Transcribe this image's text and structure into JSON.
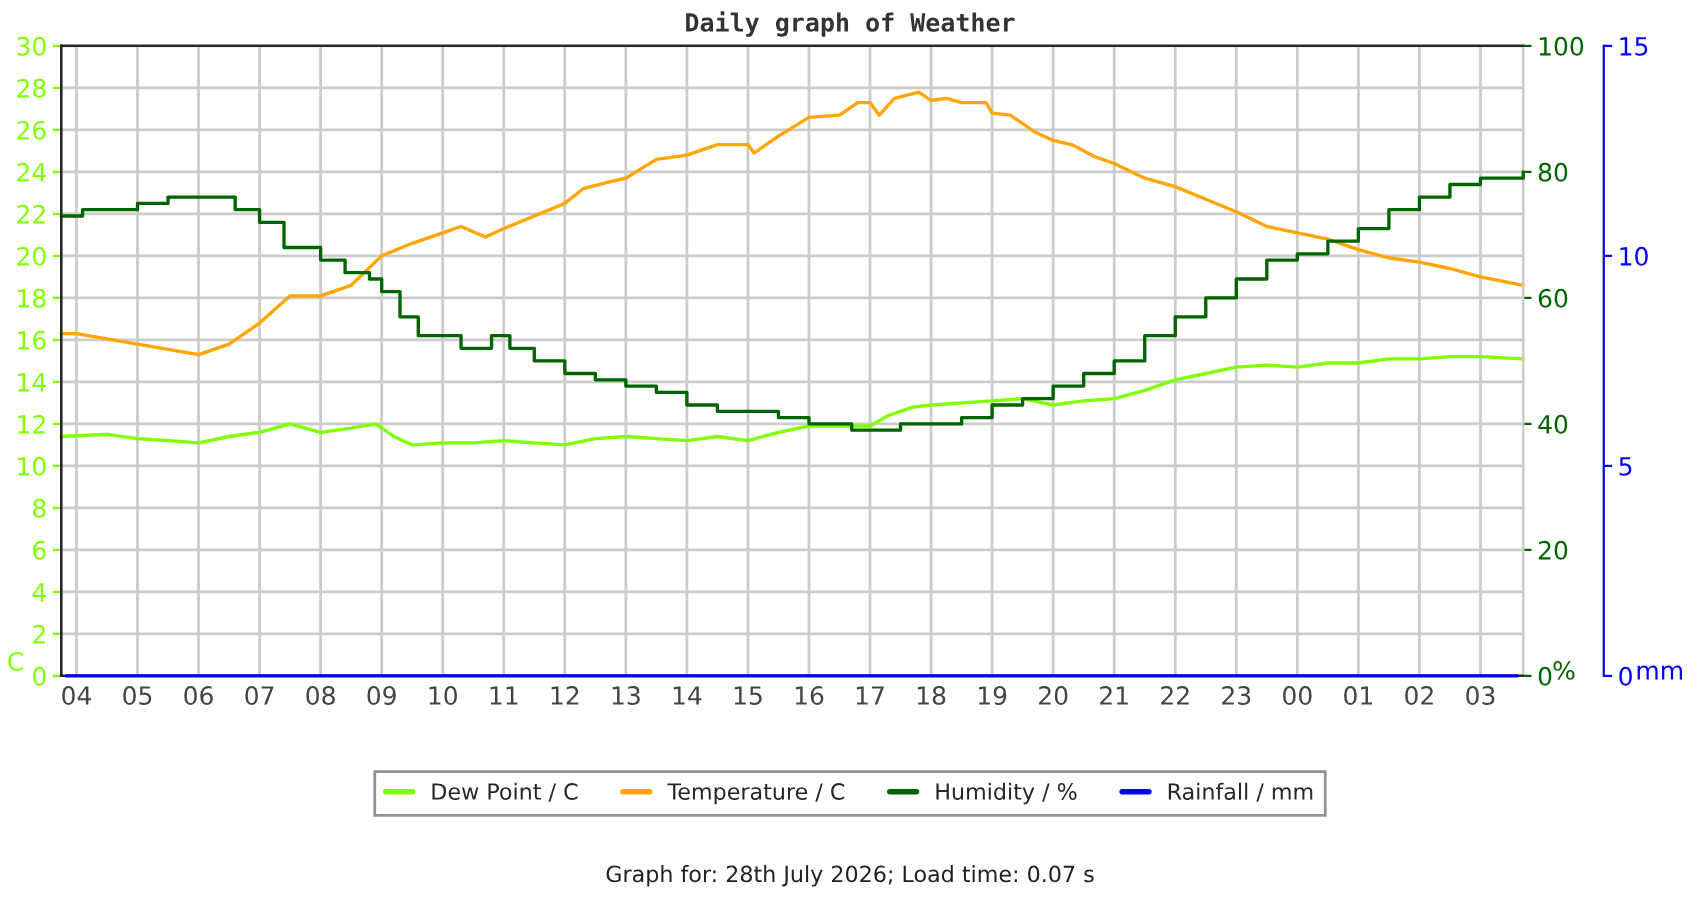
{
  "chart_data": {
    "type": "line",
    "title": "Daily graph of Weather",
    "ylabel": "C",
    "y2label": "%",
    "y3label": "mm",
    "annotations": [
      "Graph for: 28th July 2026; Load time: 0.07 s"
    ],
    "xlim": [
      "2026-07-27T03:45",
      "2026-07-28T03:42"
    ],
    "xticks": [
      {
        "value": "2026-07-27T04:00",
        "label": "04"
      },
      {
        "value": "2026-07-27T05:00",
        "label": "05"
      },
      {
        "value": "2026-07-27T06:00",
        "label": "06"
      },
      {
        "value": "2026-07-27T07:00",
        "label": "07"
      },
      {
        "value": "2026-07-27T08:00",
        "label": "08"
      },
      {
        "value": "2026-07-27T09:00",
        "label": "09"
      },
      {
        "value": "2026-07-27T10:00",
        "label": "10"
      },
      {
        "value": "2026-07-27T11:00",
        "label": "11"
      },
      {
        "value": "2026-07-27T12:00",
        "label": "12"
      },
      {
        "value": "2026-07-27T13:00",
        "label": "13"
      },
      {
        "value": "2026-07-27T14:00",
        "label": "14"
      },
      {
        "value": "2026-07-27T15:00",
        "label": "15"
      },
      {
        "value": "2026-07-27T16:00",
        "label": "16"
      },
      {
        "value": "2026-07-27T17:00",
        "label": "17"
      },
      {
        "value": "2026-07-27T18:00",
        "label": "18"
      },
      {
        "value": "2026-07-27T19:00",
        "label": "19"
      },
      {
        "value": "2026-07-27T20:00",
        "label": "20"
      },
      {
        "value": "2026-07-27T21:00",
        "label": "21"
      },
      {
        "value": "2026-07-27T22:00",
        "label": "22"
      },
      {
        "value": "2026-07-27T23:00",
        "label": "23"
      },
      {
        "value": "2026-07-28T00:00",
        "label": "00"
      },
      {
        "value": "2026-07-28T01:00",
        "label": "01"
      },
      {
        "value": "2026-07-28T02:00",
        "label": "02"
      },
      {
        "value": "2026-07-28T03:00",
        "label": "03"
      }
    ],
    "ylim": [
      0,
      30
    ],
    "yticks": [
      0,
      2,
      4,
      6,
      8,
      10,
      12,
      14,
      16,
      18,
      20,
      22,
      24,
      26,
      28,
      30
    ],
    "y2lim": [
      0,
      100
    ],
    "y2ticks": [
      0,
      20,
      40,
      60,
      80,
      100
    ],
    "y3lim": [
      0,
      15
    ],
    "y3ticks": [
      0,
      5,
      10,
      15
    ],
    "grid": true,
    "legend": "bottom",
    "series": [
      {
        "name": "Dew Point / C",
        "color": "#80ff00",
        "x": [
          "2026-07-27T03:45",
          "2026-07-27T04:30",
          "2026-07-27T05:00",
          "2026-07-27T05:30",
          "2026-07-27T06:00",
          "2026-07-27T06:30",
          "2026-07-27T07:00",
          "2026-07-27T07:30",
          "2026-07-27T08:00",
          "2026-07-27T08:30",
          "2026-07-27T08:54",
          "2026-07-27T09:12",
          "2026-07-27T09:30",
          "2026-07-27T10:00",
          "2026-07-27T10:30",
          "2026-07-27T11:00",
          "2026-07-27T11:30",
          "2026-07-27T12:00",
          "2026-07-27T12:30",
          "2026-07-27T13:00",
          "2026-07-27T13:30",
          "2026-07-27T14:00",
          "2026-07-27T14:30",
          "2026-07-27T15:00",
          "2026-07-27T15:30",
          "2026-07-27T16:00",
          "2026-07-27T16:42",
          "2026-07-27T17:00",
          "2026-07-27T17:18",
          "2026-07-27T17:42",
          "2026-07-27T18:00",
          "2026-07-27T18:30",
          "2026-07-27T19:00",
          "2026-07-27T19:30",
          "2026-07-27T20:00",
          "2026-07-27T20:30",
          "2026-07-27T21:00",
          "2026-07-27T21:30",
          "2026-07-27T22:00",
          "2026-07-27T22:30",
          "2026-07-27T23:00",
          "2026-07-27T23:30",
          "2026-07-28T00:00",
          "2026-07-28T00:30",
          "2026-07-28T01:00",
          "2026-07-28T01:30",
          "2026-07-28T02:00",
          "2026-07-28T02:30",
          "2026-07-28T03:00",
          "2026-07-28T03:42"
        ],
        "values": [
          11.4,
          11.5,
          11.3,
          11.2,
          11.1,
          11.4,
          11.6,
          12.0,
          11.6,
          11.8,
          12.0,
          11.4,
          11.0,
          11.1,
          11.1,
          11.2,
          11.1,
          11.0,
          11.3,
          11.4,
          11.3,
          11.2,
          11.4,
          11.2,
          11.6,
          11.9,
          11.9,
          11.9,
          12.4,
          12.8,
          12.9,
          13.0,
          13.1,
          13.2,
          12.9,
          13.1,
          13.2,
          13.6,
          14.1,
          14.4,
          14.7,
          14.8,
          14.7,
          14.9,
          14.9,
          15.1,
          15.1,
          15.2,
          15.2,
          15.1
        ]
      },
      {
        "name": "Temperature / C",
        "color": "#ffa500",
        "x": [
          "2026-07-27T03:45",
          "2026-07-27T04:00",
          "2026-07-27T05:00",
          "2026-07-27T06:00",
          "2026-07-27T06:30",
          "2026-07-27T07:00",
          "2026-07-27T07:30",
          "2026-07-27T08:00",
          "2026-07-27T08:30",
          "2026-07-27T09:00",
          "2026-07-27T09:30",
          "2026-07-27T10:00",
          "2026-07-27T10:18",
          "2026-07-27T10:42",
          "2026-07-27T11:00",
          "2026-07-27T11:30",
          "2026-07-27T12:00",
          "2026-07-27T12:18",
          "2026-07-27T12:42",
          "2026-07-27T13:00",
          "2026-07-27T13:30",
          "2026-07-27T14:00",
          "2026-07-27T14:30",
          "2026-07-27T15:00",
          "2026-07-27T15:06",
          "2026-07-27T15:30",
          "2026-07-27T16:00",
          "2026-07-27T16:30",
          "2026-07-27T16:48",
          "2026-07-27T17:00",
          "2026-07-27T17:09",
          "2026-07-27T17:24",
          "2026-07-27T17:48",
          "2026-07-27T18:00",
          "2026-07-27T18:15",
          "2026-07-27T18:30",
          "2026-07-27T18:54",
          "2026-07-27T19:00",
          "2026-07-27T19:18",
          "2026-07-27T19:42",
          "2026-07-27T20:00",
          "2026-07-27T20:18",
          "2026-07-27T20:42",
          "2026-07-27T21:00",
          "2026-07-27T21:30",
          "2026-07-27T22:00",
          "2026-07-27T22:30",
          "2026-07-27T23:00",
          "2026-07-27T23:30",
          "2026-07-28T00:00",
          "2026-07-28T00:30",
          "2026-07-28T01:00",
          "2026-07-28T01:30",
          "2026-07-28T02:00",
          "2026-07-28T02:30",
          "2026-07-28T03:00",
          "2026-07-28T03:42"
        ],
        "values": [
          16.3,
          16.3,
          15.8,
          15.3,
          15.8,
          16.8,
          18.1,
          18.1,
          18.6,
          20.0,
          20.6,
          21.1,
          21.4,
          20.9,
          21.3,
          21.9,
          22.5,
          23.2,
          23.5,
          23.7,
          24.6,
          24.8,
          25.3,
          25.3,
          24.9,
          25.7,
          26.6,
          26.7,
          27.3,
          27.3,
          26.7,
          27.5,
          27.8,
          27.4,
          27.5,
          27.3,
          27.3,
          26.8,
          26.7,
          25.9,
          25.5,
          25.3,
          24.7,
          24.4,
          23.7,
          23.3,
          22.7,
          22.1,
          21.4,
          21.1,
          20.8,
          20.3,
          19.9,
          19.7,
          19.4,
          19.0,
          18.6
        ]
      },
      {
        "name": "Humidity / %",
        "color": "#006400",
        "type": "step",
        "axis": "y2",
        "x": [
          "2026-07-27T03:45",
          "2026-07-27T04:06",
          "2026-07-27T05:00",
          "2026-07-27T05:30",
          "2026-07-27T06:18",
          "2026-07-27T06:36",
          "2026-07-27T07:00",
          "2026-07-27T07:24",
          "2026-07-27T08:00",
          "2026-07-27T08:24",
          "2026-07-27T08:48",
          "2026-07-27T09:00",
          "2026-07-27T09:18",
          "2026-07-27T09:36",
          "2026-07-27T10:00",
          "2026-07-27T10:18",
          "2026-07-27T10:48",
          "2026-07-27T11:06",
          "2026-07-27T11:30",
          "2026-07-27T12:00",
          "2026-07-27T12:30",
          "2026-07-27T13:00",
          "2026-07-27T13:30",
          "2026-07-27T14:00",
          "2026-07-27T14:30",
          "2026-07-27T15:00",
          "2026-07-27T15:30",
          "2026-07-27T16:00",
          "2026-07-27T16:42",
          "2026-07-27T17:00",
          "2026-07-27T17:30",
          "2026-07-27T18:00",
          "2026-07-27T18:30",
          "2026-07-27T19:00",
          "2026-07-27T19:30",
          "2026-07-27T20:00",
          "2026-07-27T20:30",
          "2026-07-27T21:00",
          "2026-07-27T21:30",
          "2026-07-27T22:00",
          "2026-07-27T22:30",
          "2026-07-27T23:00",
          "2026-07-27T23:30",
          "2026-07-28T00:00",
          "2026-07-28T00:30",
          "2026-07-28T01:00",
          "2026-07-28T01:30",
          "2026-07-28T02:00",
          "2026-07-28T02:30",
          "2026-07-28T03:00",
          "2026-07-28T03:42"
        ],
        "values": [
          73,
          74,
          75,
          76,
          76,
          74,
          72,
          68,
          66,
          64,
          63,
          61,
          57,
          54,
          54,
          52,
          54,
          52,
          50,
          48,
          47,
          46,
          45,
          43,
          42,
          42,
          41,
          40,
          39,
          39,
          40,
          40,
          41,
          43,
          44,
          46,
          48,
          50,
          54,
          57,
          60,
          63,
          66,
          67,
          69,
          71,
          74,
          76,
          78,
          79,
          80
        ]
      },
      {
        "name": "Rainfall / mm",
        "color": "#0000ff",
        "axis": "y3",
        "x": [
          "2026-07-27T03:50",
          "2026-07-28T03:36"
        ],
        "values": [
          0,
          0
        ]
      }
    ]
  }
}
